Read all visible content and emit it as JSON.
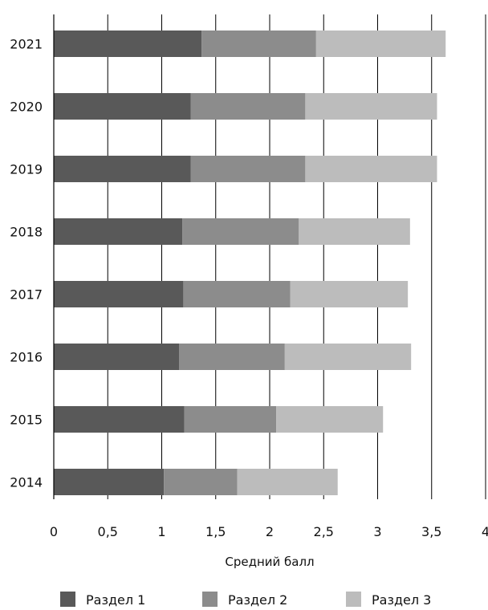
{
  "chart_data": {
    "type": "bar",
    "orientation": "horizontal",
    "stacked": true,
    "title": "",
    "xlabel": "Средний балл",
    "ylabel": "",
    "xlim": [
      0,
      4
    ],
    "x_ticks": [
      "0",
      "0,5",
      "1",
      "1,5",
      "2",
      "2,5",
      "3",
      "3,5",
      "4"
    ],
    "grid": "vertical",
    "legend_position": "bottom",
    "categories": [
      "2021",
      "2020",
      "2019",
      "2018",
      "2017",
      "2016",
      "2015",
      "2014"
    ],
    "series": [
      {
        "name": "Раздел 1",
        "color": "#595959",
        "values": [
          1.37,
          1.27,
          1.27,
          1.19,
          1.2,
          1.16,
          1.21,
          1.02
        ]
      },
      {
        "name": "Раздел 2",
        "color": "#8c8c8c",
        "values": [
          1.06,
          1.06,
          1.06,
          1.08,
          0.99,
          0.98,
          0.85,
          0.68
        ]
      },
      {
        "name": "Раздел 3",
        "color": "#bcbcbc",
        "values": [
          1.2,
          1.22,
          1.22,
          1.03,
          1.09,
          1.17,
          0.99,
          0.93
        ]
      }
    ]
  }
}
